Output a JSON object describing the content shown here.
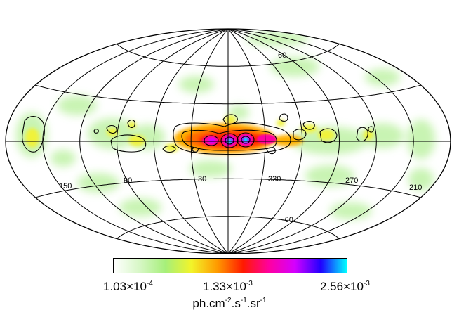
{
  "map": {
    "projection": "Aitoff/Hammer all-sky, Galactic coordinates",
    "lon_labels": [
      {
        "text": "150",
        "lon": 150
      },
      {
        "text": "90",
        "lon": 90
      },
      {
        "text": "30",
        "lon": 30
      },
      {
        "text": "330",
        "lon": 330
      },
      {
        "text": "270",
        "lon": 270
      },
      {
        "text": "210",
        "lon": 210
      }
    ],
    "lat_labels": [
      {
        "text": "60",
        "lat": 60
      },
      {
        "text": "-60",
        "lat": -60
      }
    ],
    "graticule": {
      "lon_step_deg": 30,
      "lat_lines_deg": [
        -60,
        -30,
        0,
        30,
        60
      ]
    }
  },
  "colorbar": {
    "colors": [
      "#ffffff",
      "#d7f7c6",
      "#a6ef7a",
      "#f2f42a",
      "#ff9a00",
      "#ff1a00",
      "#ff00a0",
      "#d400ff",
      "#2000ff",
      "#00ffff"
    ],
    "min": {
      "mantissa": "1.03",
      "times": "×10",
      "exp": "-4"
    },
    "mid": {
      "mantissa": "1.33",
      "times": "×10",
      "exp": "-3"
    },
    "max": {
      "mantissa": "2.56",
      "times": "×10",
      "exp": "-3"
    },
    "units": {
      "a": "ph.cm",
      "e1": "-2",
      "b": ".s",
      "e2": "-1",
      "c": ".sr",
      "e3": "-1"
    }
  }
}
